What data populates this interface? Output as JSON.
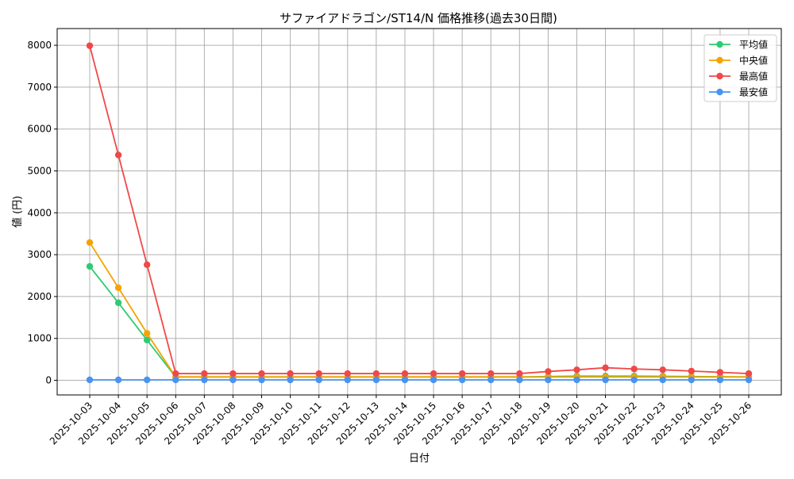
{
  "chart_data": {
    "type": "line",
    "title": "サファイアドラゴン/ST14/N 価格推移(過去30日間)",
    "xlabel": "日付",
    "ylabel": "値 (円)",
    "ylim": [
      -350,
      8400
    ],
    "yticks": [
      0,
      1000,
      2000,
      3000,
      4000,
      5000,
      6000,
      7000,
      8000
    ],
    "grid": true,
    "legend_position": "top-right",
    "categories": [
      "2025-10-03",
      "2025-10-04",
      "2025-10-05",
      "2025-10-06",
      "2025-10-07",
      "2025-10-08",
      "2025-10-09",
      "2025-10-10",
      "2025-10-11",
      "2025-10-12",
      "2025-10-13",
      "2025-10-14",
      "2025-10-15",
      "2025-10-16",
      "2025-10-17",
      "2025-10-18",
      "2025-10-19",
      "2025-10-20",
      "2025-10-21",
      "2025-10-22",
      "2025-10-23",
      "2025-10-24",
      "2025-10-25",
      "2025-10-26"
    ],
    "series": [
      {
        "name": "平均値",
        "color": "#2ecc71",
        "values": [
          2720,
          1850,
          960,
          80,
          80,
          80,
          80,
          80,
          80,
          80,
          80,
          80,
          80,
          80,
          80,
          80,
          90,
          100,
          100,
          100,
          95,
          90,
          85,
          80
        ]
      },
      {
        "name": "中央値",
        "color": "#f5a300",
        "values": [
          3290,
          2210,
          1120,
          80,
          80,
          80,
          80,
          80,
          80,
          80,
          80,
          80,
          80,
          80,
          80,
          80,
          80,
          80,
          80,
          80,
          80,
          80,
          80,
          80
        ]
      },
      {
        "name": "最高値",
        "color": "#f04848",
        "values": [
          7990,
          5380,
          2760,
          160,
          160,
          160,
          160,
          160,
          160,
          160,
          160,
          160,
          160,
          160,
          160,
          160,
          210,
          250,
          300,
          270,
          250,
          220,
          190,
          160
        ]
      },
      {
        "name": "最安値",
        "color": "#4a94f0",
        "values": [
          10,
          10,
          10,
          10,
          10,
          10,
          10,
          10,
          10,
          10,
          10,
          10,
          10,
          10,
          10,
          10,
          10,
          10,
          10,
          10,
          10,
          10,
          10,
          10
        ]
      }
    ]
  }
}
